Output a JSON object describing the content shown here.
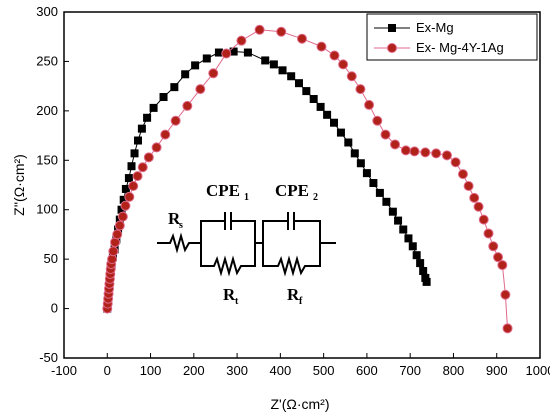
{
  "chart_data": {
    "type": "scatter",
    "xlabel": "Z'(Ω·cm²)",
    "ylabel": "Z''(Ω·cm²)",
    "xlim": [
      -100,
      1000
    ],
    "ylim": [
      -50,
      300
    ],
    "xticks": [
      -100,
      0,
      100,
      200,
      300,
      400,
      500,
      600,
      700,
      800,
      900,
      1000
    ],
    "yticks": [
      -50,
      0,
      50,
      100,
      150,
      200,
      250,
      300
    ],
    "legend_position": "top-right",
    "series": [
      {
        "name": "Ex-Mg",
        "marker": "square",
        "color": "#000000",
        "line_color": "#000000",
        "points": [
          [
            0,
            0
          ],
          [
            1,
            5
          ],
          [
            2,
            10
          ],
          [
            3,
            15
          ],
          [
            4,
            20
          ],
          [
            5,
            25
          ],
          [
            6,
            30
          ],
          [
            7,
            35
          ],
          [
            8,
            40
          ],
          [
            10,
            45
          ],
          [
            13,
            52
          ],
          [
            17,
            60
          ],
          [
            21,
            70
          ],
          [
            25,
            80
          ],
          [
            29,
            90
          ],
          [
            33,
            100
          ],
          [
            38,
            110
          ],
          [
            43,
            121
          ],
          [
            50,
            132
          ],
          [
            56,
            144
          ],
          [
            63,
            157
          ],
          [
            71,
            170
          ],
          [
            80,
            182
          ],
          [
            92,
            193
          ],
          [
            107,
            203
          ],
          [
            130,
            214
          ],
          [
            155,
            224
          ],
          [
            180,
            237
          ],
          [
            203,
            246
          ],
          [
            230,
            253
          ],
          [
            258,
            259
          ],
          [
            292,
            260
          ],
          [
            325,
            259
          ],
          [
            365,
            251
          ],
          [
            385,
            247
          ],
          [
            405,
            241
          ],
          [
            425,
            235
          ],
          [
            443,
            228
          ],
          [
            460,
            220
          ],
          [
            477,
            212
          ],
          [
            493,
            204
          ],
          [
            508,
            196
          ],
          [
            524,
            188
          ],
          [
            540,
            178
          ],
          [
            557,
            168
          ],
          [
            572,
            157
          ],
          [
            586,
            147
          ],
          [
            600,
            137
          ],
          [
            615,
            127
          ],
          [
            630,
            117
          ],
          [
            645,
            108
          ],
          [
            660,
            98
          ],
          [
            672,
            89
          ],
          [
            684,
            80
          ],
          [
            696,
            71
          ],
          [
            706,
            63
          ],
          [
            715,
            54
          ],
          [
            723,
            46
          ],
          [
            730,
            38
          ],
          [
            735,
            31
          ],
          [
            738,
            27
          ]
        ]
      },
      {
        "name": "Ex- Mg-4Y-1Ag",
        "marker": "circle",
        "color": "#b0221a",
        "line_color": "#e06a8c",
        "points": [
          [
            0,
            0
          ],
          [
            1,
            5
          ],
          [
            2,
            10
          ],
          [
            3,
            15
          ],
          [
            4,
            20
          ],
          [
            5,
            25
          ],
          [
            6,
            30
          ],
          [
            7,
            35
          ],
          [
            8,
            40
          ],
          [
            9,
            45
          ],
          [
            11,
            50
          ],
          [
            14,
            58
          ],
          [
            18,
            67
          ],
          [
            23,
            75
          ],
          [
            29,
            84
          ],
          [
            36,
            93
          ],
          [
            42,
            104
          ],
          [
            51,
            113
          ],
          [
            60,
            124
          ],
          [
            70,
            134
          ],
          [
            82,
            143
          ],
          [
            96,
            153
          ],
          [
            114,
            163
          ],
          [
            134,
            176
          ],
          [
            158,
            190
          ],
          [
            185,
            205
          ],
          [
            215,
            222
          ],
          [
            245,
            238
          ],
          [
            275,
            258
          ],
          [
            310,
            271
          ],
          [
            352,
            282
          ],
          [
            402,
            280
          ],
          [
            450,
            273
          ],
          [
            495,
            265
          ],
          [
            525,
            256
          ],
          [
            545,
            247
          ],
          [
            565,
            235
          ],
          [
            585,
            222
          ],
          [
            605,
            206
          ],
          [
            624,
            190
          ],
          [
            643,
            176
          ],
          [
            665,
            166
          ],
          [
            690,
            160
          ],
          [
            710,
            159
          ],
          [
            735,
            158
          ],
          [
            760,
            157
          ],
          [
            785,
            155
          ],
          [
            805,
            148
          ],
          [
            822,
            136
          ],
          [
            835,
            124
          ],
          [
            848,
            112
          ],
          [
            858,
            103
          ],
          [
            870,
            90
          ],
          [
            881,
            76
          ],
          [
            892,
            63
          ],
          [
            903,
            52
          ],
          [
            913,
            44
          ],
          [
            920,
            14
          ],
          [
            925,
            -20
          ]
        ]
      }
    ],
    "annotations": {
      "circuit_labels": {
        "rs": "R",
        "rs_sub": "s",
        "cpe1": "CPE",
        "cpe1_sub": "1",
        "cpe2": "CPE",
        "cpe2_sub": "2",
        "rt": "R",
        "rt_sub": "t",
        "rf": "R",
        "rf_sub": "f"
      }
    }
  }
}
